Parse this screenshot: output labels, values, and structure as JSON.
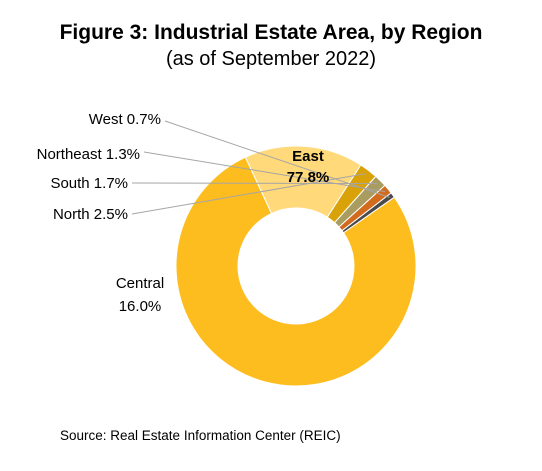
{
  "chart_data": {
    "type": "pie",
    "variant": "donut",
    "title": "Figure 3: Industrial Estate Area, by Region",
    "subtitle": "(as of September 2022)",
    "categories": [
      "East",
      "Central",
      "North",
      "South",
      "Northeast",
      "West"
    ],
    "values": [
      77.8,
      16.0,
      2.5,
      1.7,
      1.3,
      0.7
    ],
    "labels": [
      "77.8%",
      "16.0%",
      "2.5%",
      "1.7%",
      "1.3%",
      "0.7%"
    ],
    "colors": [
      "#FDBD1E",
      "#FFD97A",
      "#D8A208",
      "#A89C61",
      "#D36B1F",
      "#4A4A4A"
    ],
    "unit": "%"
  },
  "source": "Source: Real Estate Information Center (REIC)"
}
